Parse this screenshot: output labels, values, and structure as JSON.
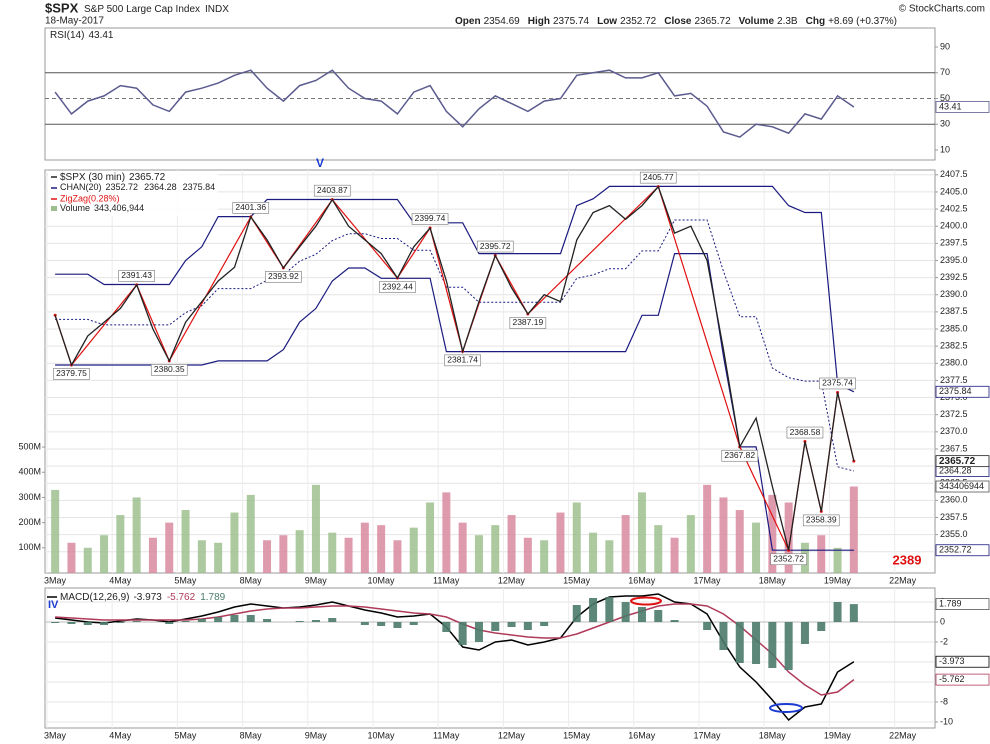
{
  "header": {
    "symbol": "$SPX",
    "name": "S&P 500 Large Cap Index",
    "exchange": "INDX",
    "date": "18-May-2017",
    "quote": [
      [
        "Open",
        "2354.69"
      ],
      [
        "High",
        "2375.74"
      ],
      [
        "Low",
        "2352.72"
      ],
      [
        "Close",
        "2365.72"
      ],
      [
        "Volume",
        "2.3B"
      ],
      [
        "Chg",
        "+8.69 (+0.37%)"
      ]
    ],
    "credit": "© StockCharts.com"
  },
  "annotations": {
    "wave_v": "V",
    "wave_iv": "IV",
    "target": "2389"
  },
  "chart_data": [
    {
      "type": "line",
      "series": [
        {
          "name": "RSI(14)",
          "color": "#5b5b8f",
          "last_tag": true,
          "values": [
            55,
            38,
            48,
            52,
            60,
            58,
            45,
            40,
            55,
            58,
            62,
            68,
            72,
            58,
            48,
            60,
            64,
            72,
            58,
            50,
            48,
            38,
            55,
            60,
            40,
            28,
            42,
            52,
            46,
            40,
            48,
            50,
            68,
            70,
            72,
            66,
            66,
            70,
            52,
            54,
            44,
            24,
            20,
            30,
            28,
            23,
            38,
            34,
            52,
            43.41,
            null,
            null,
            null,
            null
          ]
        }
      ],
      "ylim": [
        2.2,
        104.8
      ],
      "yticks": [
        10,
        30,
        50,
        70,
        90
      ],
      "bands": [
        30,
        70
      ],
      "midline": 50,
      "grid": false
    },
    {
      "type": "line",
      "categories": [
        "3May",
        null,
        null,
        null,
        "4May",
        null,
        null,
        null,
        "5May",
        null,
        null,
        null,
        "8May",
        null,
        null,
        null,
        "9May",
        null,
        null,
        null,
        "10May",
        null,
        null,
        null,
        "11May",
        null,
        null,
        null,
        "12May",
        null,
        null,
        null,
        "15May",
        null,
        null,
        null,
        "16May",
        null,
        null,
        null,
        "17May",
        null,
        null,
        null,
        "18May",
        null,
        null,
        null,
        "19May",
        null,
        null,
        null,
        "22May",
        null
      ],
      "series": [
        {
          "name": "Volume",
          "type": "bar",
          "axis": "y2",
          "up_color": "#9dbf8e",
          "down_color": "#d88aa0",
          "last_tag": true,
          "values": [
            330,
            120,
            100,
            150,
            230,
            300,
            140,
            200,
            250,
            130,
            120,
            240,
            310,
            130,
            150,
            170,
            350,
            160,
            140,
            200,
            190,
            130,
            180,
            280,
            320,
            200,
            150,
            190,
            230,
            140,
            130,
            240,
            280,
            160,
            130,
            230,
            320,
            190,
            140,
            230,
            350,
            300,
            250,
            200,
            310,
            280,
            120,
            150,
            100,
            343.406944,
            null,
            null,
            null,
            null
          ],
          "value_labels": [
            null,
            null,
            null,
            null,
            null,
            null,
            null,
            null,
            null,
            null,
            null,
            null,
            null,
            null,
            null,
            null,
            null,
            null,
            null,
            null,
            null,
            null,
            null,
            null,
            null,
            null,
            null,
            null,
            null,
            null,
            null,
            null,
            null,
            null,
            null,
            null,
            null,
            null,
            null,
            null,
            null,
            null,
            null,
            null,
            null,
            null,
            null,
            null,
            null,
            "343,406,944",
            null,
            null,
            null,
            null
          ],
          "tag_label": "343406944"
        },
        {
          "name": "CHAN(20)",
          "type": "channel",
          "color": "#1a1a80",
          "last_tag": true,
          "upper": [
            2393,
            2393,
            2393,
            2391.5,
            2391.5,
            2391.5,
            2391.5,
            2391.5,
            2395,
            2397,
            2401.4,
            2401.4,
            2401.4,
            2403.9,
            2403.9,
            2403.9,
            2403.9,
            2403.9,
            2403.9,
            2403.9,
            2403.9,
            2403.9,
            2400.5,
            2400.5,
            2400.5,
            2400.5,
            2396,
            2396,
            2396,
            2396,
            2396,
            2396,
            2403,
            2404,
            2405.8,
            2405.8,
            2405.8,
            2405.8,
            2405.8,
            2405.8,
            2405.8,
            2405.8,
            2405.8,
            2405.8,
            2405.8,
            2403,
            2402,
            2402,
            2377,
            2375.84,
            null,
            null,
            null,
            null
          ],
          "middle": [
            2386.4,
            2386.4,
            2386.4,
            2385.6,
            2385.6,
            2385.6,
            2385.6,
            2385.6,
            2387.4,
            2388.4,
            2390.9,
            2390.9,
            2390.9,
            2392.1,
            2392.9,
            2394.9,
            2395.9,
            2397.9,
            2398.9,
            2398.9,
            2398.2,
            2398.2,
            2396.5,
            2396.5,
            2391.1,
            2391.1,
            2388.9,
            2388.9,
            2388.9,
            2388.9,
            2388.9,
            2388.9,
            2392.4,
            2392.9,
            2393.8,
            2393.8,
            2396.4,
            2396.4,
            2400.9,
            2400.9,
            2400.9,
            2393.4,
            2386.8,
            2386.8,
            2379.3,
            2377.9,
            2377.4,
            2377.4,
            2364.9,
            2364.28,
            null,
            null,
            null,
            null
          ],
          "lower": [
            2379.75,
            2379.75,
            2379.75,
            2379.75,
            2379.75,
            2379.75,
            2379.75,
            2379.75,
            2379.75,
            2379.75,
            2380.35,
            2380.35,
            2380.35,
            2380.35,
            2382,
            2386,
            2388,
            2392,
            2393.9,
            2393.9,
            2392.4,
            2392.4,
            2392.4,
            2392.4,
            2381.7,
            2381.7,
            2381.7,
            2381.7,
            2381.7,
            2381.7,
            2381.7,
            2381.7,
            2381.7,
            2381.7,
            2381.7,
            2381.7,
            2387,
            2387,
            2396,
            2396,
            2396,
            2381,
            2367.8,
            2367.8,
            2352.72,
            2352.72,
            2352.72,
            2352.72,
            2352.72,
            2352.72,
            null,
            null,
            null,
            null
          ]
        },
        {
          "name": "ZigZag(0.28%)",
          "color": "#e01010",
          "connect_gaps": true,
          "values": [
            2387,
            2379.75,
            null,
            null,
            null,
            2391.43,
            null,
            2380.35,
            null,
            null,
            null,
            null,
            2401.36,
            null,
            2393.92,
            null,
            null,
            2403.87,
            null,
            null,
            null,
            2392.44,
            null,
            2399.74,
            null,
            2381.74,
            null,
            2395.72,
            null,
            2387.19,
            null,
            null,
            null,
            null,
            null,
            null,
            null,
            2405.77,
            null,
            null,
            null,
            null,
            2367.82,
            null,
            null,
            2352.72,
            2368.58,
            2358.39,
            2375.74,
            2365.72,
            null,
            null,
            null,
            null
          ],
          "value_labels": [
            null,
            "2379.75",
            null,
            null,
            null,
            "2391.43",
            null,
            "2380.35",
            null,
            null,
            null,
            null,
            "2401.36",
            null,
            "2393.92",
            null,
            null,
            "2403.87",
            null,
            null,
            null,
            "2392.44",
            null,
            "2399.74",
            null,
            "2381.74",
            null,
            "2395.72",
            null,
            "2387.19",
            null,
            null,
            null,
            null,
            null,
            null,
            null,
            "2405.77",
            null,
            null,
            null,
            null,
            "2367.82",
            null,
            null,
            "2352.72",
            "2368.58",
            "2358.39",
            "2375.74",
            null,
            null,
            null,
            null,
            null
          ]
        },
        {
          "name": "$SPX (30 min)",
          "color": "#222222",
          "last_tag": true,
          "bold_tag": true,
          "values": [
            2387,
            2379.75,
            2384,
            2386,
            2388,
            2391.43,
            2385,
            2380.35,
            2386,
            2389,
            2392,
            2394,
            2401.36,
            2398,
            2393.92,
            2397,
            2400,
            2403.87,
            2400,
            2398,
            2396,
            2392.44,
            2397,
            2399.74,
            2392,
            2381.74,
            2389,
            2395.72,
            2391,
            2387.19,
            2390,
            2389,
            2398,
            2402,
            2403,
            2401,
            2403,
            2405.77,
            2399,
            2400,
            2395,
            2382,
            2367.82,
            2372,
            2362,
            2352.72,
            2368.58,
            2358.39,
            2375.74,
            2365.72,
            null,
            null,
            null,
            null
          ]
        }
      ],
      "ylim": [
        2349.4,
        2408.2
      ],
      "yticks": [
        {
          "value": 2352.5,
          "label": "2352.5"
        },
        {
          "value": 2355,
          "label": "2355.0"
        },
        {
          "value": 2357.5,
          "label": "2357.5"
        },
        {
          "value": 2360,
          "label": "2360.0"
        },
        {
          "value": 2362.5,
          "label": "2362.5"
        },
        {
          "value": 2365,
          "label": "2365.0"
        },
        {
          "value": 2367.5,
          "label": "2367.5"
        },
        {
          "value": 2370,
          "label": "2370.0"
        },
        {
          "value": 2372.5,
          "label": "2372.5"
        },
        {
          "value": 2375,
          "label": "2375.0"
        },
        {
          "value": 2377.5,
          "label": "2377.5"
        },
        {
          "value": 2380,
          "label": "2380.0"
        },
        {
          "value": 2382.5,
          "label": "2382.5"
        },
        {
          "value": 2385,
          "label": "2385.0"
        },
        {
          "value": 2387.5,
          "label": "2387.5"
        },
        {
          "value": 2390,
          "label": "2390.0"
        },
        {
          "value": 2392.5,
          "label": "2392.5"
        },
        {
          "value": 2395,
          "label": "2395.0"
        },
        {
          "value": 2397.5,
          "label": "2397.5"
        },
        {
          "value": 2400,
          "label": "2400.0"
        },
        {
          "value": 2402.5,
          "label": "2402.5"
        },
        {
          "value": 2405,
          "label": "2405.0"
        },
        {
          "value": 2407.5,
          "label": "2407.5"
        }
      ],
      "y2lim": [
        0,
        1600
      ],
      "y2ticks": [
        {
          "value": 100,
          "label": "100M"
        },
        {
          "value": 200,
          "label": "200M"
        },
        {
          "value": 300,
          "label": "300M"
        },
        {
          "value": 400,
          "label": "400M"
        },
        {
          "value": 500,
          "label": "500M"
        }
      ],
      "grid": true
    },
    {
      "type": "line",
      "categories": [
        "3May",
        null,
        null,
        null,
        "4May",
        null,
        null,
        null,
        "5May",
        null,
        null,
        null,
        "8May",
        null,
        null,
        null,
        "9May",
        null,
        null,
        null,
        "10May",
        null,
        null,
        null,
        "11May",
        null,
        null,
        null,
        "12May",
        null,
        null,
        null,
        "15May",
        null,
        null,
        null,
        "16May",
        null,
        null,
        null,
        "17May",
        null,
        null,
        null,
        "18May",
        null,
        null,
        null,
        "19May",
        null,
        null,
        null,
        "22May",
        null
      ],
      "title": "MACD(12,26,9)",
      "series": [
        {
          "name": "MACD",
          "color": "#000000",
          "last_tag": true,
          "values": [
            0.4,
            0.2,
            0,
            -0.1,
            0.1,
            0.3,
            0.2,
            0,
            0.3,
            0.6,
            1,
            1.5,
            1.8,
            1.6,
            1.4,
            1.5,
            1.7,
            2,
            1.6,
            1.2,
            0.9,
            0.5,
            0.6,
            0.8,
            -0.5,
            -2.5,
            -2.8,
            -2,
            -1.8,
            -2.3,
            -2,
            -1.6,
            0.5,
            1.8,
            2.5,
            2.6,
            2.6,
            2.8,
            2,
            1.8,
            0.8,
            -2,
            -4.5,
            -6,
            -7.8,
            -9.8,
            -8.5,
            -8.2,
            -5,
            -3.973,
            null,
            null,
            null,
            null
          ]
        },
        {
          "name": "Signal",
          "color": "#b03a5a",
          "last_tag": true,
          "values": [
            0.5,
            0.4,
            0.3,
            0.2,
            0.2,
            0.2,
            0.2,
            0.2,
            0.2,
            0.3,
            0.5,
            0.8,
            1.1,
            1.3,
            1.4,
            1.4,
            1.5,
            1.6,
            1.6,
            1.5,
            1.3,
            1.1,
            0.9,
            0.8,
            0.5,
            -0.2,
            -0.8,
            -1.1,
            -1.3,
            -1.5,
            -1.6,
            -1.6,
            -1.2,
            -0.6,
            0,
            0.6,
            1.1,
            1.6,
            1.8,
            1.8,
            1.6,
            0.8,
            -0.4,
            -1.8,
            -3.2,
            -5,
            -6.3,
            -7.3,
            -7,
            -5.762,
            null,
            null,
            null,
            null
          ]
        },
        {
          "name": "Histogram",
          "type": "bar",
          "color": "#4a7a6a",
          "last_tag": true,
          "values": [
            -0.1,
            -0.2,
            -0.3,
            -0.3,
            -0.1,
            0.1,
            0,
            -0.2,
            0.1,
            0.3,
            0.5,
            0.7,
            0.7,
            0.3,
            0,
            0.1,
            0.2,
            0.4,
            0,
            -0.3,
            -0.4,
            -0.6,
            -0.3,
            0,
            -1,
            -2.3,
            -2,
            -0.9,
            -0.5,
            -0.8,
            -0.4,
            0,
            1.7,
            2.4,
            2.5,
            2,
            1.5,
            1.2,
            0.2,
            0,
            -0.8,
            -2.8,
            -4.1,
            -4.2,
            -4.6,
            -4.8,
            -2.2,
            -0.9,
            2,
            1.789,
            null,
            null,
            null,
            null
          ]
        }
      ],
      "ylim": [
        -10.6,
        3.4
      ],
      "yticks": [
        2,
        0,
        -2,
        -4,
        -6,
        -8,
        -10
      ],
      "grid": true
    }
  ]
}
